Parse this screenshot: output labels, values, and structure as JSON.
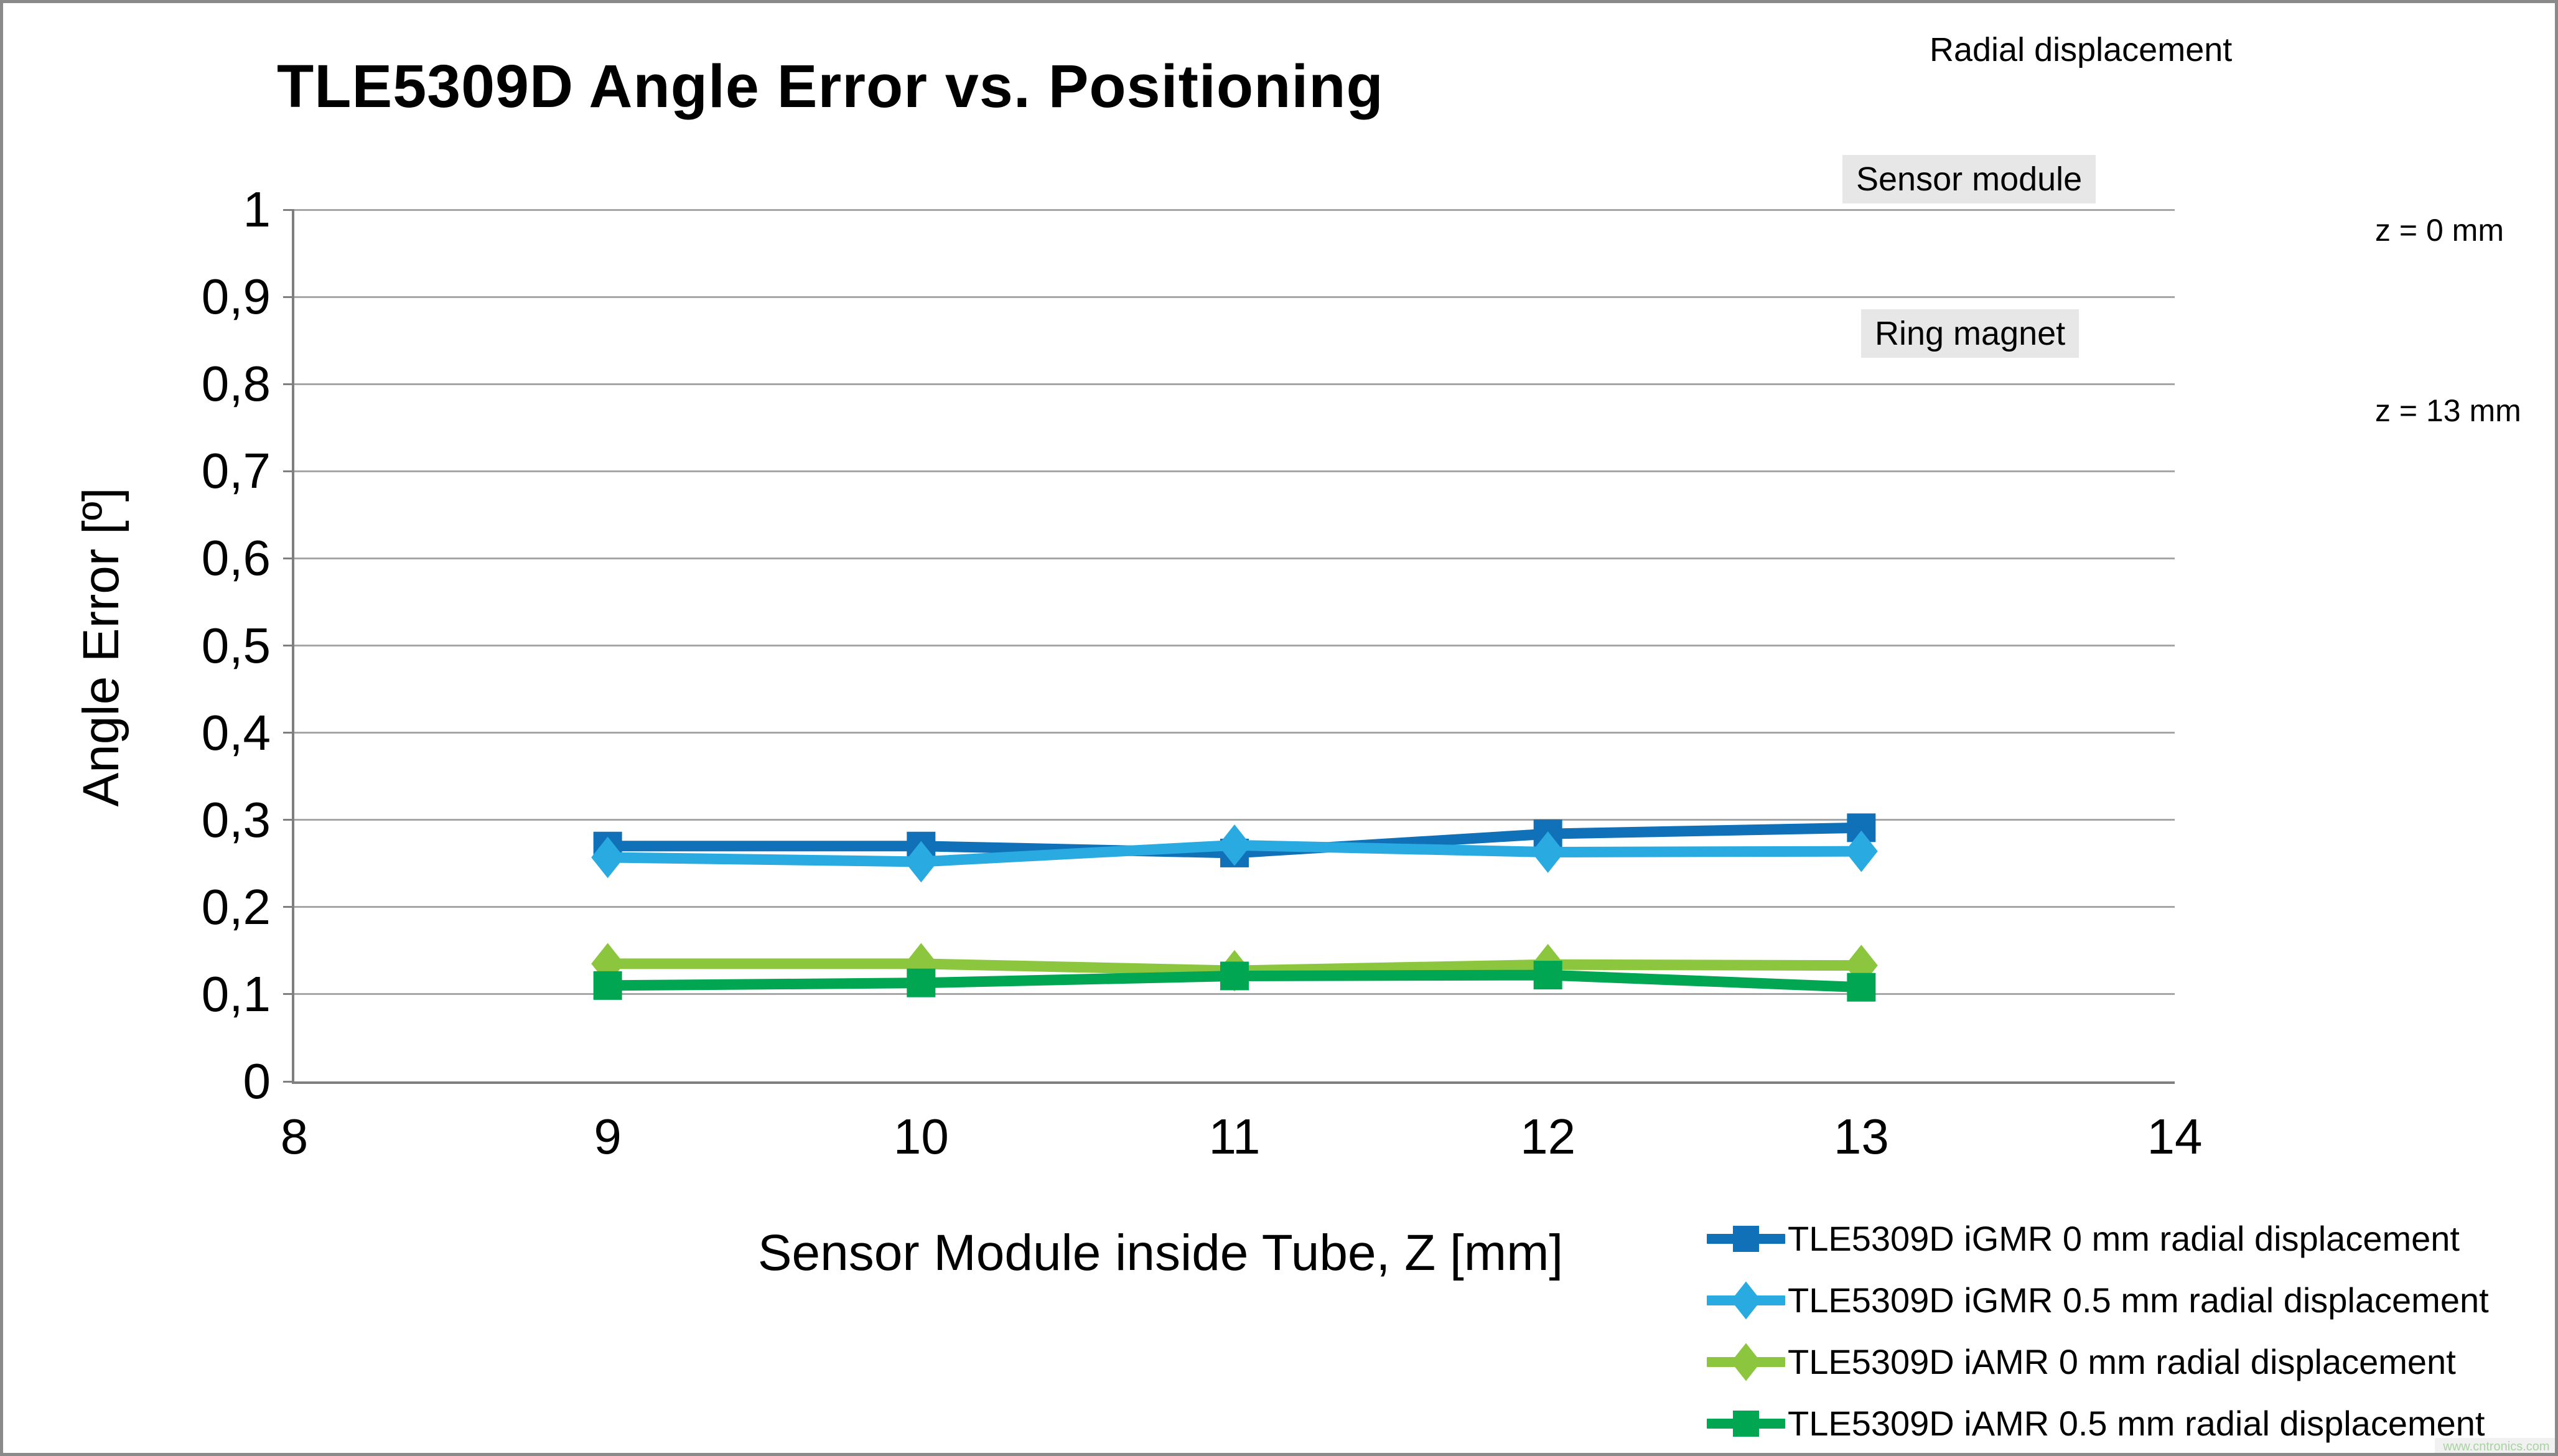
{
  "title": "TLE5309D Angle Error vs. Positioning",
  "watermark": "www.cntronics.com",
  "chart_data": {
    "type": "line",
    "title": "TLE5309D Angle Error vs. Positioning",
    "xlabel": "Sensor Module inside Tube, Z [mm]",
    "ylabel": "Angle Error [º]",
    "xlim": [
      8,
      14
    ],
    "ylim": [
      0,
      1
    ],
    "grid": "horizontal-only",
    "legend_position": "bottom-right",
    "x_tick_labels": [
      "8",
      "9",
      "10",
      "11",
      "12",
      "13",
      "14"
    ],
    "x_tick_values": [
      8,
      9,
      10,
      11,
      12,
      13,
      14
    ],
    "y_tick_labels": [
      "0",
      "0,1",
      "0,2",
      "0,3",
      "0,4",
      "0,5",
      "0,6",
      "0,7",
      "0,8",
      "0,9",
      "1"
    ],
    "y_tick_values": [
      0,
      0.1,
      0.2,
      0.3,
      0.4,
      0.5,
      0.6,
      0.7,
      0.8,
      0.9,
      1
    ],
    "x": [
      9,
      10,
      11,
      12,
      13
    ],
    "series": [
      {
        "name": "TLE5309D iGMR 0 mm radial displacement",
        "color": "#1070B8",
        "marker": "square",
        "values": [
          0.27,
          0.27,
          0.262,
          0.284,
          0.291
        ]
      },
      {
        "name": "TLE5309D iGMR 0.5 mm radial displacement",
        "color": "#29ABE2",
        "marker": "diamond",
        "values": [
          0.257,
          0.252,
          0.271,
          0.263,
          0.264
        ]
      },
      {
        "name": "TLE5309D iAMR 0 mm radial displacement",
        "color": "#8CC63F",
        "marker": "diamond",
        "values": [
          0.135,
          0.135,
          0.127,
          0.134,
          0.133
        ]
      },
      {
        "name": "TLE5309D iAMR 0.5 mm radial displacement",
        "color": "#00A651",
        "marker": "square",
        "values": [
          0.11,
          0.113,
          0.121,
          0.122,
          0.108
        ]
      }
    ]
  },
  "diagram": {
    "radial_label": "Radial displacement",
    "sensor_label": "Sensor module",
    "ring_label": "Ring magnet",
    "z0_label": "z = 0 mm",
    "z13_label": "z = 13 mm",
    "blue_fill": "#5B84BB",
    "blue_border": "#3F6096",
    "magenta": "#B13069",
    "label_bg": "#E7E7E7"
  }
}
